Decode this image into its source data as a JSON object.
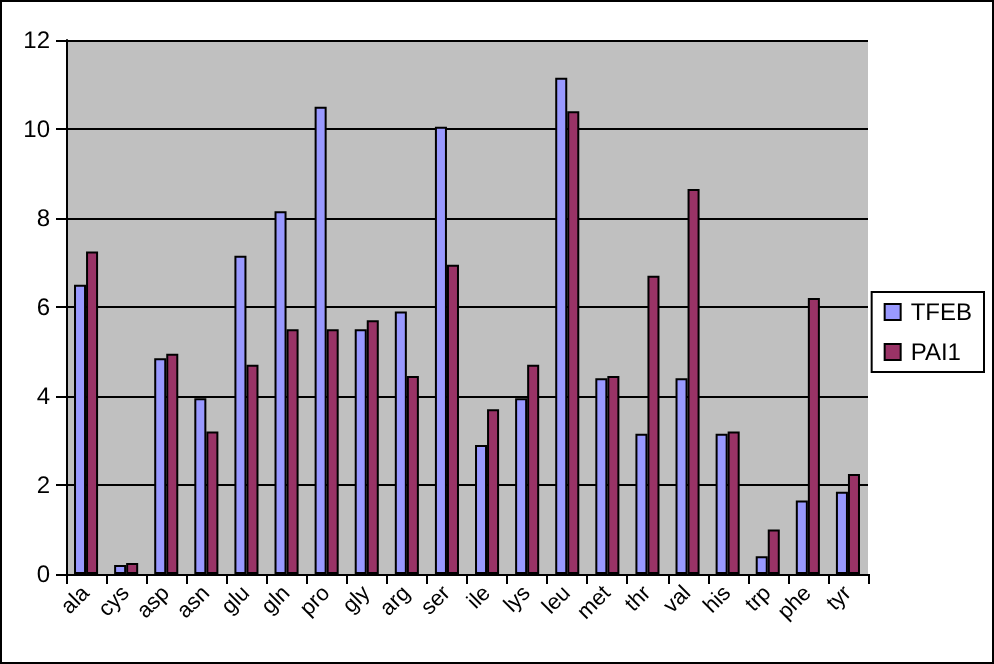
{
  "chart_data": {
    "type": "bar",
    "categories": [
      "ala",
      "cys",
      "asp",
      "asn",
      "glu",
      "gln",
      "pro",
      "gly",
      "arg",
      "ser",
      "ile",
      "lys",
      "leu",
      "met",
      "thr",
      "val",
      "his",
      "trp",
      "phe",
      "tyr"
    ],
    "series": [
      {
        "name": "TFEB",
        "color": "#9999ff",
        "values": [
          6.5,
          0.2,
          4.85,
          3.95,
          7.15,
          8.15,
          10.5,
          5.5,
          5.9,
          10.05,
          2.9,
          3.95,
          11.15,
          4.4,
          3.15,
          4.4,
          3.15,
          0.4,
          1.65,
          1.85
        ]
      },
      {
        "name": "PAI1",
        "color": "#993366",
        "values": [
          7.25,
          0.25,
          4.95,
          3.2,
          4.7,
          5.5,
          5.5,
          5.7,
          4.45,
          6.95,
          3.7,
          4.7,
          10.4,
          4.45,
          6.7,
          8.65,
          3.2,
          1.0,
          6.2,
          2.25
        ]
      }
    ],
    "ylim": [
      0,
      12
    ],
    "yticks": [
      0,
      2,
      4,
      6,
      8,
      10,
      12
    ],
    "grid": "y",
    "legend": "right"
  }
}
